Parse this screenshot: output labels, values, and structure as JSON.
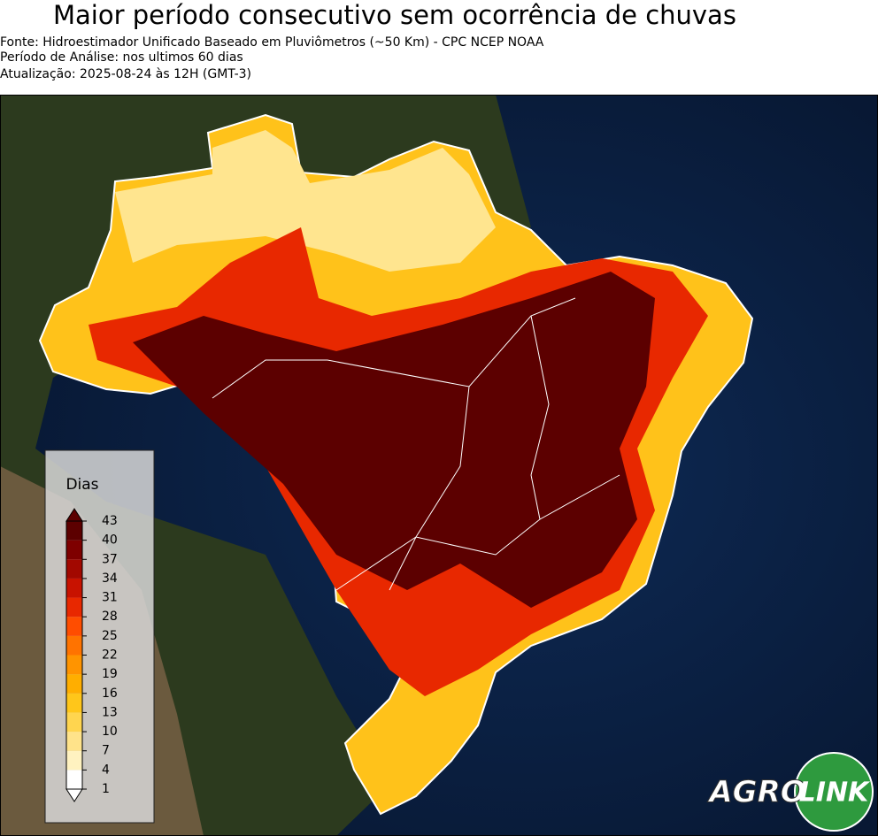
{
  "header": {
    "title": "Maior período consecutivo sem ocorrência de chuvas",
    "lines": [
      "Fonte: Hidroestimador Unificado Baseado em Pluviômetros (~50 Km) - CPC NCEP NOAA",
      "Período de Análise: nos ultimos 60 dias",
      "Atualização: 2025-08-24 às 12H (GMT-3)"
    ]
  },
  "colorbar": {
    "label": "Dias",
    "ticks": [
      1,
      4,
      7,
      10,
      13,
      16,
      19,
      22,
      25,
      28,
      31,
      34,
      37,
      40,
      43
    ],
    "colors": [
      "#ffffff",
      "#fff2c0",
      "#ffe38a",
      "#ffd54f",
      "#ffc61a",
      "#ffae00",
      "#ff9400",
      "#ff7300",
      "#ff4d00",
      "#e82800",
      "#c81200",
      "#a20800",
      "#7e0000",
      "#5c0000"
    ]
  },
  "logo": {
    "left": "AGRO",
    "right": "LINK"
  }
}
